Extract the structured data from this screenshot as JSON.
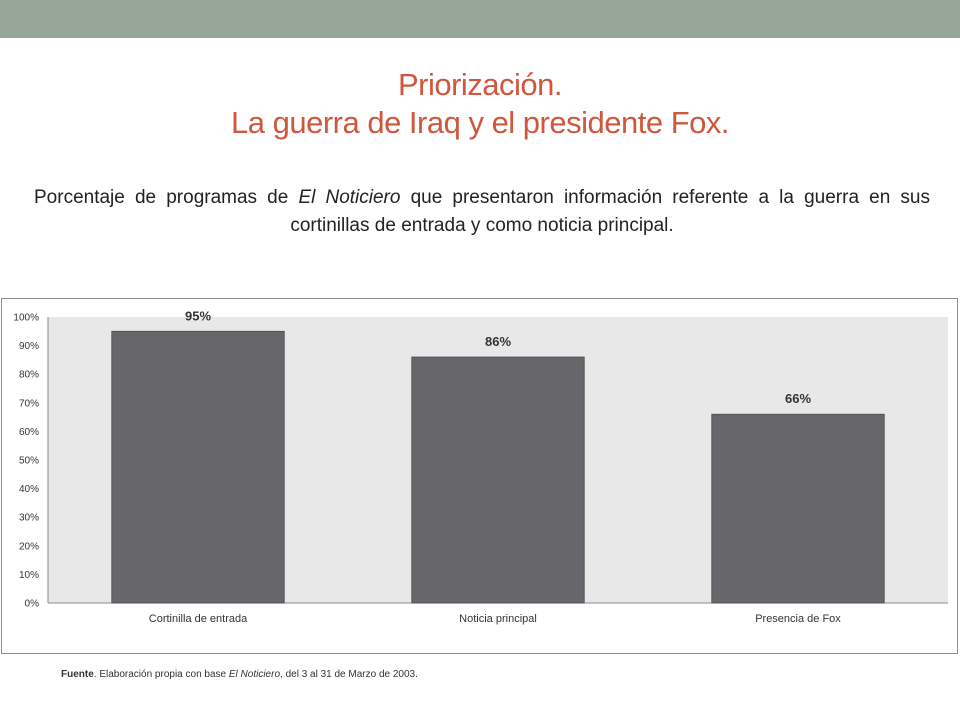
{
  "title": {
    "line1": "Priorización.",
    "line2": "La guerra de Iraq y el presidente Fox."
  },
  "subtitle": {
    "part1": "Porcentaje de programas de ",
    "italic": "El Noticiero",
    "part2": " que presentaron información referente a la guerra en sus cortinillas de entrada y como noticia principal."
  },
  "chart_data": {
    "type": "bar",
    "categories": [
      "Cortinilla de entrada",
      "Noticia principal",
      "Presencia de Fox"
    ],
    "values": [
      95,
      86,
      66
    ],
    "data_labels": [
      "95%",
      "86%",
      "66%"
    ],
    "ylim": [
      0,
      100
    ],
    "yticks": [
      0,
      10,
      20,
      30,
      40,
      50,
      60,
      70,
      80,
      90,
      100
    ],
    "ytick_labels": [
      "0%",
      "10%",
      "20%",
      "30%",
      "40%",
      "50%",
      "60%",
      "70%",
      "80%",
      "90%",
      "100%"
    ],
    "bar_color": "#67666b",
    "plot_bg": "#e8e8e8",
    "grid": false,
    "legend": "none"
  },
  "source": {
    "label": "Fuente",
    "text1": ". Elaboración propia con base ",
    "italic": "El Noticiero",
    "text2": ", del 3 al 31 de Marzo de 2003."
  },
  "colors": {
    "top_bar": "#95a596",
    "title": "#cf573d"
  }
}
